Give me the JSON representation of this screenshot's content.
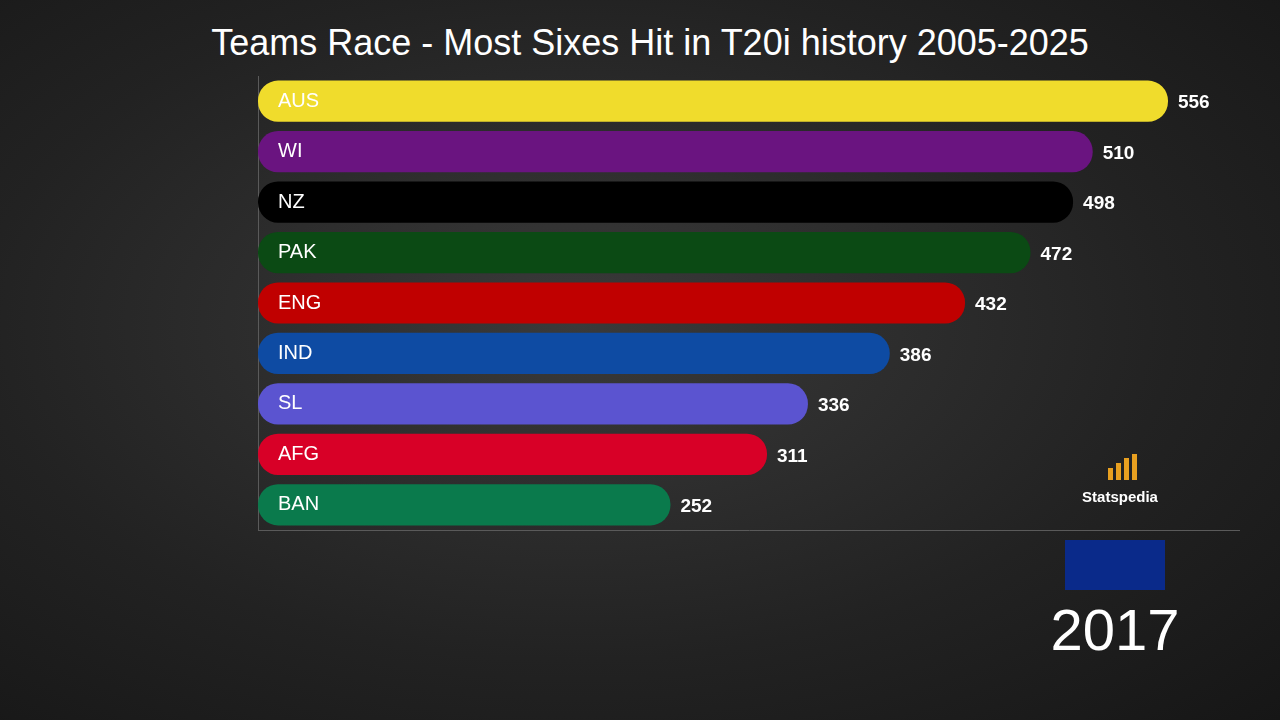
{
  "chart_data": {
    "type": "bar",
    "orientation": "horizontal",
    "title": "Teams Race - Most Sixes Hit in T20i history 2005-2025",
    "categories": [
      "AUS",
      "WI",
      "NZ",
      "PAK",
      "ENG",
      "IND",
      "SL",
      "AFG",
      "BAN"
    ],
    "values": [
      556,
      510,
      498,
      472,
      432,
      386,
      336,
      311,
      252
    ],
    "colors": [
      "#f0dc2c",
      "#6a1480",
      "#000000",
      "#0b4a14",
      "#c00000",
      "#0e4ba3",
      "#5b54d0",
      "#d80027",
      "#0a7a4c"
    ],
    "xlim": [
      0,
      600
    ],
    "grid": false,
    "data_labels": true,
    "tick_labels": "y",
    "annotations": [
      "Statspedia",
      "2017"
    ]
  }
}
